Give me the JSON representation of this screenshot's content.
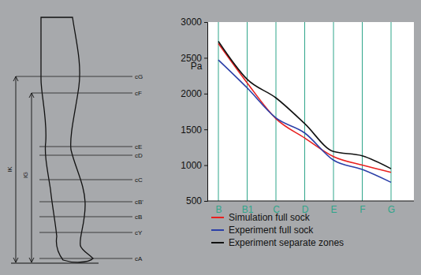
{
  "chart_data": {
    "type": "line",
    "y_label": "Pa",
    "categories": [
      "B",
      "B1",
      "C",
      "D",
      "E",
      "F",
      "G"
    ],
    "series": [
      {
        "name": "Simulation full sock",
        "color": "#e8201f",
        "values": [
          2700,
          2150,
          1650,
          1380,
          1120,
          1000,
          900
        ]
      },
      {
        "name": "Experiment full sock",
        "color": "#2b3fa8",
        "values": [
          2470,
          2080,
          1660,
          1450,
          1070,
          940,
          760
        ]
      },
      {
        "name": "Experiment separate zones",
        "color": "#111111",
        "values": [
          2730,
          2200,
          1940,
          1580,
          1190,
          1130,
          950
        ]
      }
    ],
    "ylim": [
      500,
      3000
    ],
    "yticks": [
      500,
      1000,
      1500,
      2000,
      2500,
      3000
    ],
    "grid": true,
    "legend": "bottom",
    "annotations": [
      "cG",
      "cF",
      "cE",
      "cD",
      "cC",
      "cB'",
      "cB",
      "cY",
      "cA",
      "lK",
      "lG"
    ]
  }
}
